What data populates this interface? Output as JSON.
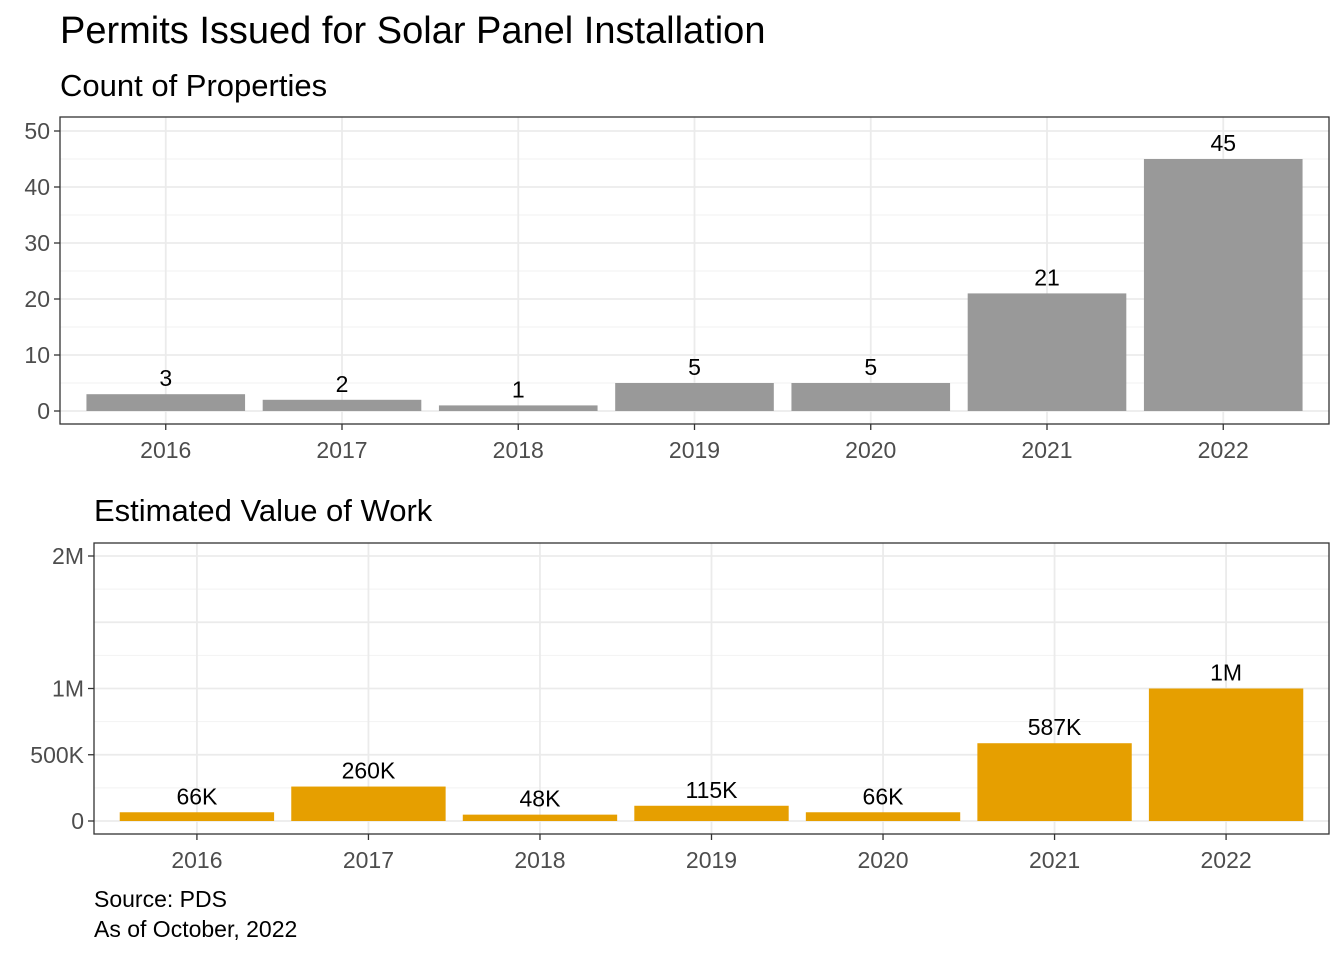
{
  "title": "Permits Issued for Solar Panel Installation",
  "caption": [
    "Source: PDS",
    "As of October, 2022"
  ],
  "chart_data": [
    {
      "type": "bar",
      "title": "Count of Properties",
      "categories": [
        "2016",
        "2017",
        "2018",
        "2019",
        "2020",
        "2021",
        "2022"
      ],
      "values": [
        3,
        2,
        1,
        5,
        5,
        21,
        45
      ],
      "data_labels": [
        "3",
        "2",
        "1",
        "5",
        "5",
        "21",
        "45"
      ],
      "ylim": [
        0,
        50
      ],
      "y_ticks": [
        0,
        10,
        20,
        30,
        40,
        50
      ],
      "y_tick_labels": [
        "0",
        "10",
        "20",
        "30",
        "40",
        "50"
      ],
      "bar_color": "#999999",
      "grid": true
    },
    {
      "type": "bar",
      "title": "Estimated Value of Work",
      "categories": [
        "2016",
        "2017",
        "2018",
        "2019",
        "2020",
        "2021",
        "2022"
      ],
      "values": [
        66000,
        260000,
        48000,
        115000,
        66000,
        587000,
        1000000
      ],
      "data_labels": [
        "66K",
        "260K",
        "48K",
        "115K",
        "66K",
        "587K",
        "1M"
      ],
      "ylim": [
        0,
        2000000
      ],
      "y_ticks": [
        0,
        500000,
        1000000,
        2000000
      ],
      "y_tick_labels": [
        "0",
        "500K",
        "1M",
        "2M"
      ],
      "bar_color": "#E69F00",
      "grid": true
    }
  ]
}
